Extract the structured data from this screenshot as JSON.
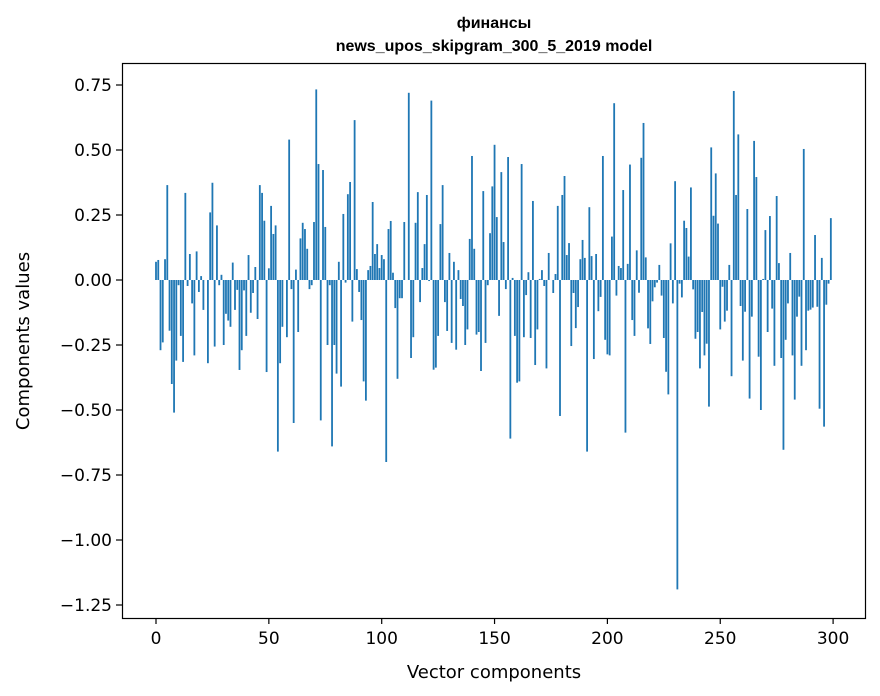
{
  "chart_data": {
    "type": "bar",
    "title": [
      "финансы",
      "news_upos_skipgram_300_5_2019 model"
    ],
    "xlabel": "Vector components",
    "ylabel": "Components values",
    "xlim": [
      -15,
      315
    ],
    "ylim": [
      -1.3,
      0.83
    ],
    "xticks": [
      0,
      50,
      100,
      150,
      200,
      250,
      300
    ],
    "xtick_labels": [
      "0",
      "50",
      "100",
      "150",
      "200",
      "250",
      "300"
    ],
    "yticks": [
      0.75,
      0.5,
      0.25,
      0.0,
      -0.25,
      -0.5,
      -0.75,
      -1.0,
      -1.25
    ],
    "ytick_labels": [
      "0.75",
      "0.50",
      "0.25",
      "0.00",
      "−0.25",
      "−0.50",
      "−0.75",
      "−1.00",
      "−1.25"
    ],
    "grid": false,
    "bar_color": "#1f77b4",
    "values": [
      0.07,
      0.077,
      -0.27,
      -0.24,
      0.08,
      0.365,
      -0.195,
      -0.4,
      -0.51,
      -0.31,
      -0.02,
      -0.215,
      -0.315,
      0.335,
      -0.023,
      0.1,
      -0.09,
      -0.29,
      0.11,
      -0.046,
      0.015,
      -0.115,
      0,
      -0.32,
      0.26,
      0.374,
      -0.256,
      0.21,
      -0.02,
      0.02,
      -0.25,
      -0.13,
      -0.156,
      -0.18,
      0.067,
      -0.115,
      -0.038,
      -0.346,
      -0.27,
      -0.04,
      -0.215,
      0.096,
      -0.126,
      -0.05,
      0.05,
      -0.15,
      0.365,
      0.335,
      0.228,
      -0.354,
      0.045,
      0.285,
      0.177,
      0.21,
      -0.66,
      -0.32,
      -0.18,
      0,
      -0.22,
      0.54,
      -0.035,
      -0.55,
      0.04,
      -0.2,
      0.16,
      0.22,
      0.196,
      0.12,
      -0.035,
      -0.02,
      0.223,
      0.733,
      0.446,
      -0.54,
      0.423,
      0.204,
      -0.25,
      -0.02,
      -0.64,
      -0.25,
      -0.36,
      0.07,
      -0.41,
      0.254,
      -0.01,
      0.33,
      0.377,
      -0.16,
      0.615,
      0.042,
      -0.046,
      -0.154,
      -0.39,
      -0.464,
      0.038,
      0.054,
      0.3,
      0.1,
      0.138,
      0.046,
      0.096,
      0.08,
      -0.7,
      0.196,
      0.227,
      0.028,
      -0.108,
      -0.38,
      -0.07,
      -0.07,
      0.223,
      0,
      0.72,
      -0.3,
      -0.22,
      0.22,
      0.338,
      -0.085,
      0.046,
      0.138,
      0.327,
      -0.004,
      0.69,
      -0.345,
      -0.337,
      -0.215,
      0.215,
      0.365,
      -0.085,
      -0.196,
      0.104,
      -0.242,
      0.07,
      -0.268,
      0.038,
      -0.073,
      -0.1,
      -0.25,
      -0.19,
      0.158,
      0.477,
      0.12,
      -0.21,
      -0.2,
      -0.35,
      0.342,
      -0.242,
      -0.02,
      0.18,
      0.36,
      0.52,
      0.242,
      -0.138,
      0.415,
      0.146,
      -0.035,
      0.473,
      -0.61,
      0.008,
      -0.215,
      -0.395,
      -0.39,
      0.446,
      -0.22,
      -0.058,
      0.03,
      -0.223,
      0.304,
      -0.327,
      -0.19,
      0.004,
      0.038,
      -0.023,
      -0.34,
      0.104,
      0,
      -0.05,
      0.023,
      0.285,
      -0.523,
      0.327,
      0.4,
      0.096,
      0.142,
      -0.254,
      -0.05,
      -0.185,
      -0.104,
      0.08,
      0.154,
      0.085,
      -0.66,
      0.28,
      0.092,
      -0.304,
      0.1,
      -0.12,
      -0.065,
      0.477,
      -0.23,
      -0.286,
      -0.29,
      0.167,
      0.68,
      -0.06,
      0.054,
      0.046,
      0.346,
      -0.587,
      0.062,
      0.444,
      -0.154,
      -0.215,
      0.114,
      -0.049,
      0.47,
      0.604,
      0.087,
      -0.186,
      -0.246,
      -0.082,
      -0.028,
      -0.01,
      0.058,
      -0.06,
      -0.223,
      -0.353,
      -0.44,
      0.141,
      -0.09,
      0.38,
      -1.19,
      -0.014,
      -0.067,
      0.228,
      0.2,
      0.09,
      0.356,
      -0.036,
      -0.226,
      -0.2,
      -0.34,
      -0.123,
      -0.29,
      -0.245,
      -0.487,
      0.51,
      0.247,
      0.41,
      0.217,
      -0.19,
      -0.026,
      -0.16,
      -0.118,
      0.058,
      -0.37,
      0.727,
      0.327,
      0.56,
      -0.1,
      -0.31,
      -0.122,
      0.273,
      -0.456,
      -0.141,
      0.535,
      0.396,
      -0.295,
      -0.5,
      0.004,
      0.192,
      -0.2,
      0.246,
      -0.11,
      -0.33,
      0.323,
      0.065,
      -0.3,
      -0.653,
      -0.23,
      -0.09,
      0.104,
      -0.29,
      -0.46,
      -0.141,
      -0.064,
      -0.33,
      0.504,
      -0.27,
      -0.118,
      -0.114,
      -0.106,
      0.173,
      -0.103,
      -0.495,
      0.085,
      -0.564,
      -0.095,
      -0.014,
      0.238
    ]
  }
}
